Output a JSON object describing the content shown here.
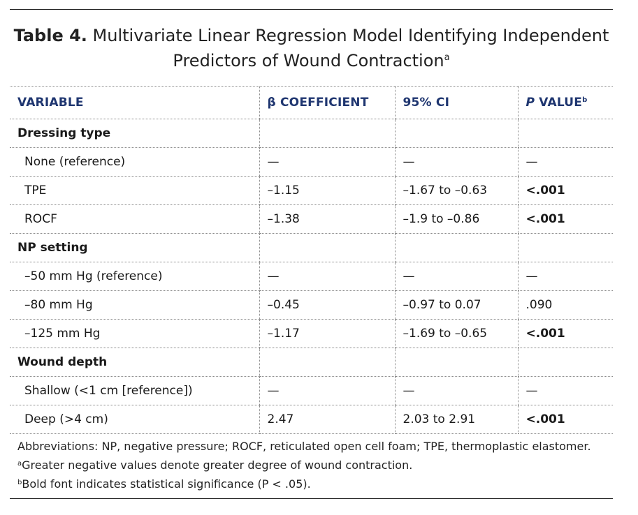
{
  "title": {
    "label": "Table 4.",
    "text": "Multivariate Linear Regression Model Identifying Independent Predictors of Wound Contraction",
    "marker": "a"
  },
  "table": {
    "headers": {
      "variable": "VARIABLE",
      "coefficient": "β COEFFICIENT",
      "ci": "95% CI",
      "p_italic": "P",
      "p_rest": " VALUE",
      "p_marker": "b"
    },
    "rows": [
      {
        "label": "Dressing type",
        "group": true,
        "coef": "",
        "ci": "",
        "p": "",
        "sig": false
      },
      {
        "label": "None (reference)",
        "group": false,
        "coef": "—",
        "ci": "—",
        "p": "—",
        "sig": false
      },
      {
        "label": "TPE",
        "group": false,
        "coef": "–1.15",
        "ci": "–1.67 to –0.63",
        "p": "<.001",
        "sig": true
      },
      {
        "label": "ROCF",
        "group": false,
        "coef": "–1.38",
        "ci": "–1.9 to –0.86",
        "p": "<.001",
        "sig": true
      },
      {
        "label": "NP setting",
        "group": true,
        "coef": "",
        "ci": "",
        "p": "",
        "sig": false
      },
      {
        "label": "–50 mm Hg (reference)",
        "group": false,
        "coef": "—",
        "ci": "—",
        "p": "—",
        "sig": false
      },
      {
        "label": "–80 mm Hg",
        "group": false,
        "coef": "–0.45",
        "ci": "–0.97 to 0.07",
        "p": ".090",
        "sig": false
      },
      {
        "label": "–125 mm Hg",
        "group": false,
        "coef": "–1.17",
        "ci": "–1.69 to –0.65",
        "p": "<.001",
        "sig": true
      },
      {
        "label": "Wound depth",
        "group": true,
        "coef": "",
        "ci": "",
        "p": "",
        "sig": false
      },
      {
        "label": "Shallow (<1 cm [reference])",
        "group": false,
        "coef": "—",
        "ci": "—",
        "p": "—",
        "sig": false
      },
      {
        "label": "Deep (>4 cm)",
        "group": false,
        "coef": "2.47",
        "ci": "2.03 to 2.91",
        "p": "<.001",
        "sig": true
      }
    ]
  },
  "footnotes": {
    "abbreviations": "Abbreviations: NP, negative pressure; ROCF, reticulated open cell foam; TPE, thermoplastic elastomer.",
    "a_marker": "a",
    "a_text": "Greater negative values denote greater degree of wound contraction.",
    "b_marker": "b",
    "b_text": "Bold font indicates statistical significance (P < .05)."
  },
  "colors": {
    "header_text": "#1f3670",
    "rule": "#222222"
  }
}
